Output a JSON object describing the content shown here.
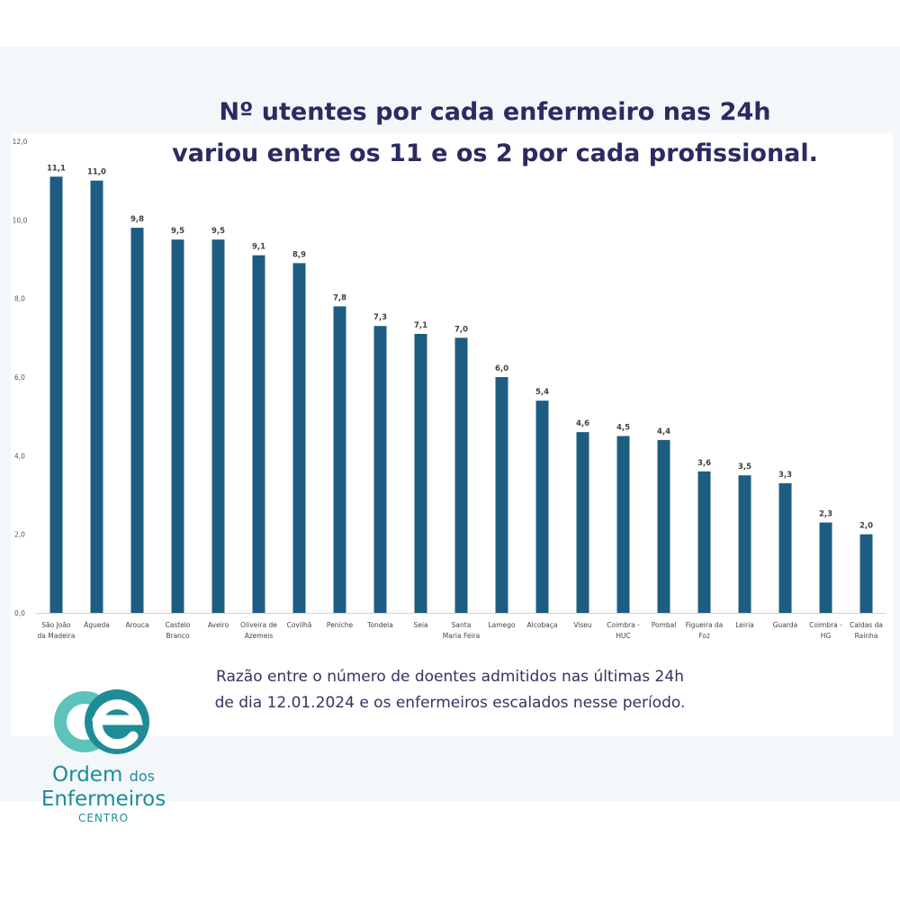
{
  "title": {
    "line1": "Nº utentes por cada enfermeiro nas 24h",
    "line2": "variou entre os 11 e os 2 por cada profissional."
  },
  "caption": {
    "line1": "Razão entre o número de doentes admitidos nas últimas 24h",
    "line2": "de dia 12.01.2024 e os enfermeiros escalados nesse período."
  },
  "logo": {
    "line1": "Ordem",
    "line1_small": "dos",
    "line2": "Enfermeiros",
    "line3": "CENTRO"
  },
  "colors": {
    "bar": "#1e5d82",
    "title": "#2b2a61",
    "logo": "#1e8c96",
    "logo_light": "#5cc3bb"
  },
  "chart_data": {
    "type": "bar",
    "title": "",
    "xlabel": "",
    "ylabel": "",
    "ylim": [
      0,
      12
    ],
    "yticks": [
      "0,0",
      "2,0",
      "4,0",
      "6,0",
      "8,0",
      "10,0",
      "12,0"
    ],
    "grid": false,
    "legend": "none",
    "categories": [
      [
        "São João",
        "da Madeira"
      ],
      [
        "Águeda"
      ],
      [
        "Arouca"
      ],
      [
        "Castelo",
        "Branco"
      ],
      [
        "Aveiro"
      ],
      [
        "Oliveira de",
        "Azemeis"
      ],
      [
        "Covilhã"
      ],
      [
        "Peniche"
      ],
      [
        "Tondela"
      ],
      [
        "Seia"
      ],
      [
        "Santa",
        "Maria Feira"
      ],
      [
        "Lamego"
      ],
      [
        "Alcobaça"
      ],
      [
        "Viseu"
      ],
      [
        "Coimbra -",
        "HUC"
      ],
      [
        "Pombal"
      ],
      [
        "Figueira da",
        "Foz"
      ],
      [
        "Leiria"
      ],
      [
        "Guarda"
      ],
      [
        "Coimbra -",
        "HG"
      ],
      [
        "Caldas da",
        "Rainha"
      ]
    ],
    "values": [
      11.1,
      11.0,
      9.8,
      9.5,
      9.5,
      9.1,
      8.9,
      7.8,
      7.3,
      7.1,
      7.0,
      6.0,
      5.4,
      4.6,
      4.5,
      4.4,
      3.6,
      3.5,
      3.3,
      2.3,
      2.0
    ],
    "value_labels": [
      "11,1",
      "11,0",
      "9,8",
      "9,5",
      "9,5",
      "9,1",
      "8,9",
      "7,8",
      "7,3",
      "7,1",
      "7,0",
      "6,0",
      "5,4",
      "4,6",
      "4,5",
      "4,4",
      "3,6",
      "3,5",
      "3,3",
      "2,3",
      "2,0"
    ]
  }
}
